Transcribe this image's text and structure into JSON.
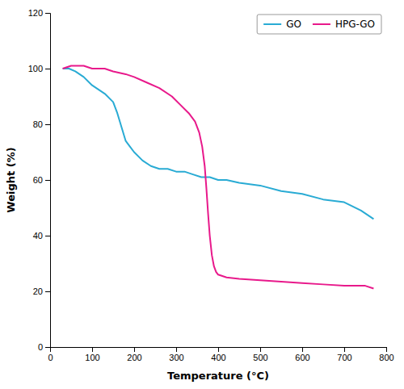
{
  "chart_data": {
    "type": "line",
    "xlabel": "Temperature (°C)",
    "ylabel": "Weight (%)",
    "xlim": [
      0,
      800
    ],
    "ylim": [
      0,
      120
    ],
    "xticks": [
      0,
      100,
      200,
      300,
      400,
      500,
      600,
      700,
      800
    ],
    "yticks": [
      0,
      20,
      40,
      60,
      80,
      100,
      120
    ],
    "grid": false,
    "legend": "upper right",
    "series": [
      {
        "name": "GO",
        "color": "#29ABD4",
        "x": [
          30,
          45,
          60,
          80,
          100,
          130,
          150,
          160,
          170,
          180,
          190,
          200,
          220,
          240,
          260,
          280,
          300,
          320,
          340,
          360,
          380,
          400,
          420,
          450,
          500,
          550,
          600,
          650,
          700,
          740,
          770
        ],
        "values": [
          100,
          100,
          99,
          97,
          94,
          91,
          88,
          84,
          79,
          74,
          72,
          70,
          67,
          65,
          64,
          64,
          63,
          63,
          62,
          61,
          61,
          60,
          60,
          59,
          58,
          56,
          55,
          53,
          52,
          49,
          46
        ]
      },
      {
        "name": "HPG-GO",
        "color": "#E8198B",
        "x": [
          30,
          50,
          80,
          100,
          130,
          150,
          180,
          200,
          230,
          260,
          290,
          310,
          330,
          345,
          355,
          362,
          368,
          372,
          376,
          380,
          385,
          390,
          395,
          400,
          410,
          420,
          450,
          500,
          550,
          600,
          650,
          700,
          750,
          770
        ],
        "values": [
          100,
          101,
          101,
          100,
          100,
          99,
          98,
          97,
          95,
          93,
          90,
          87,
          84,
          81,
          77,
          72,
          65,
          57,
          48,
          40,
          33,
          29,
          27,
          26,
          25.5,
          25,
          24.5,
          24,
          23.5,
          23,
          22.5,
          22,
          22,
          21
        ]
      }
    ]
  }
}
